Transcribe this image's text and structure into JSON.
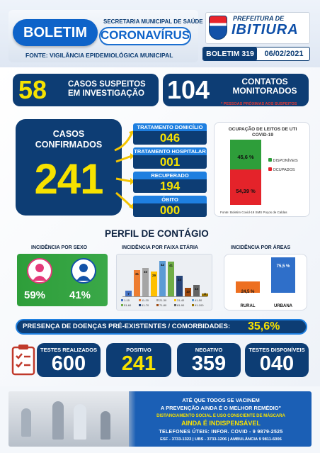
{
  "header": {
    "boletim": "BOLETIM",
    "secretaria": "SECRETARIA MUNICIPAL DE SAÚDE",
    "coronavirus": "CORONAVÍRUS",
    "fonte": "FONTE: VIGILÂNCIA EPIDEMIOLÓGICA MUNICIPAL",
    "prefeitura": "PREFEITURA DE",
    "cidade": "IBITIURA",
    "boletim_num": "BOLETIM 319",
    "data": "06/02/2021"
  },
  "suspeitos": {
    "value": "58",
    "label": "CASOS SUSPEITOS EM INVESTIGAÇÃO"
  },
  "contatos": {
    "value": "104",
    "label": "CONTATOS MONITORADOS",
    "note": "* PESSOAS PRÓXIMAS AOS SUSPEITOS"
  },
  "confirmados": {
    "label": "CASOS CONFIRMADOS",
    "value": "241"
  },
  "status": [
    {
      "label": "TRATAMENTO DOMICÍLIO",
      "value": "046"
    },
    {
      "label": "TRATAMENTO HOSPITALAR",
      "value": "001"
    },
    {
      "label": "RECUPERADO",
      "value": "194"
    },
    {
      "label": "ÓBITO",
      "value": "000"
    }
  ],
  "uti": {
    "title": "OCUPAÇÃO DE LEITOS DE UTI COVID-19",
    "disp_label": "DISPONÍVEIS",
    "disp_value": "45,6 %",
    "disp_pct": 45.6,
    "ocup_label": "OCUPADOS",
    "ocup_value": "54,39 %",
    "ocup_pct": 54.39,
    "fonte": "Fonte: Boletim Covid-19 SMS Poços de Caldas",
    "color_disp": "#2e9e3a",
    "color_ocup": "#e4232a"
  },
  "perfil": {
    "title": "PERFIL DE CONTÁGIO",
    "sexo_title": "INCIDÊNCIA POR SEXO",
    "feminino": "59%",
    "masculino": "41%",
    "faixa_title": "INCIDÊNCIA POR FAIXA ETÁRIA",
    "areas_title": "INCIDÊNCIA POR ÁREAS",
    "rural_label": "RURAL",
    "rural_value": "24,5 %",
    "urbana_label": "URBANA",
    "urbana_value": "75,5 %"
  },
  "chart_data": {
    "type": "bar",
    "categories": [
      "1-10",
      "11-20",
      "21-30",
      "31-40",
      "41-50",
      "51-60",
      "61-70",
      "71-80",
      "81-90",
      "91-100"
    ],
    "values": [
      7,
      31,
      33,
      29,
      42,
      41,
      24,
      10,
      13,
      3
    ],
    "colors": [
      "#4472c4",
      "#ed7d31",
      "#a5a5a5",
      "#ffc000",
      "#5b9bd5",
      "#70ad47",
      "#264478",
      "#9e480e",
      "#636363",
      "#997300"
    ]
  },
  "comorbidades": {
    "label": "PRESENÇA DE DOENÇAS PRÉ-EXISTENTES / COMORBIDADES:",
    "value": "35,6%"
  },
  "testes": [
    {
      "label": "TESTES REALIZADOS",
      "value": "600"
    },
    {
      "label": "POSITIVO",
      "value": "241"
    },
    {
      "label": "NEGATIVO",
      "value": "359"
    },
    {
      "label": "TESTES DISPONÍVEIS",
      "value": "040"
    }
  ],
  "footer": {
    "line1": "ATÉ QUE TODOS SE VACINEM",
    "line2": "A PREVENÇÃO AINDA É O MELHOR REMÉDIO\"",
    "line3": "DISTANCIAMENTO SOCIAL E USO CONSCIENTE DE MÁSCARA",
    "line4": "AINDA É INDISPENSÁVEL",
    "line5": "TELEFONES ÚTEIS: INFOR. COVID - 9 9879-2525",
    "line6": "ESF - 3733-1322 | UBS - 3733-1206 | AMBULÂNCIA 9 9811-6006"
  }
}
